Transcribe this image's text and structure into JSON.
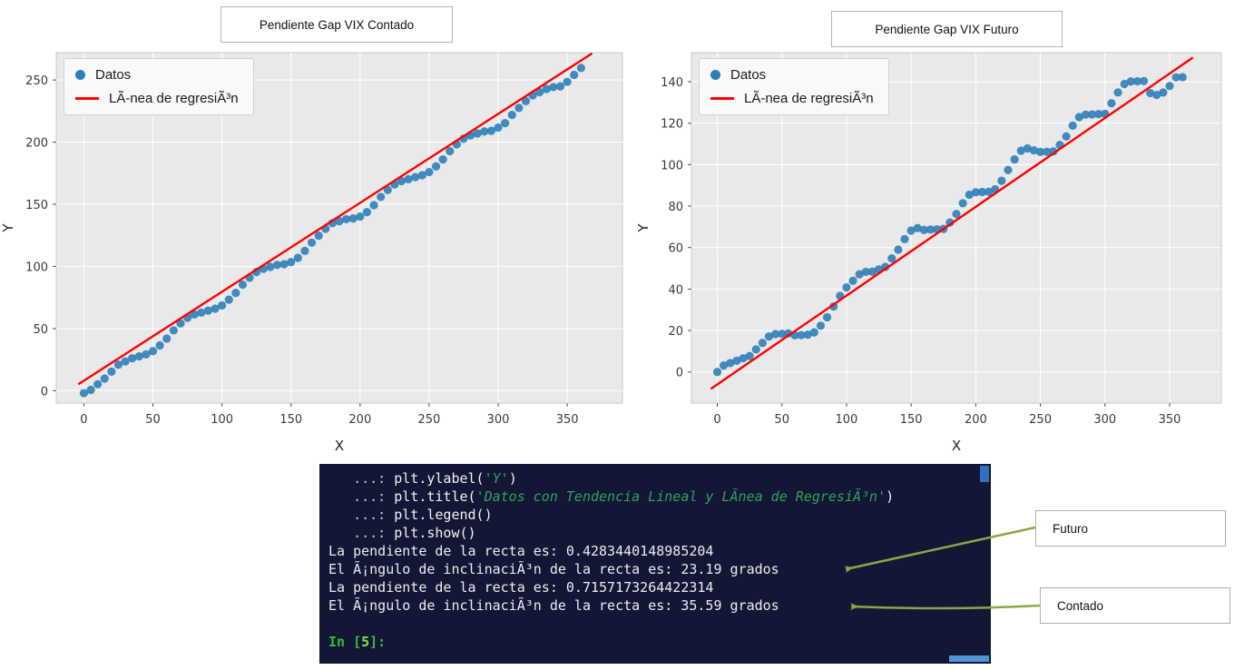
{
  "chart_data": [
    {
      "type": "scatter",
      "id": "contado",
      "title": "Pendiente Gap VIX Contado",
      "legend": [
        "Datos",
        "LÃ-nea de regresiÃ³n"
      ],
      "legend_position": "upper left",
      "xlabel": "X",
      "ylabel": "Y",
      "xlim": [
        -20,
        390
      ],
      "ylim": [
        -10,
        272
      ],
      "xticks": [
        0,
        50,
        100,
        150,
        200,
        250,
        300,
        350
      ],
      "yticks": [
        0,
        50,
        100,
        150,
        200,
        250
      ],
      "grid": true,
      "colors": {
        "scatter": "#2d7fb8",
        "line": "#ff0000",
        "plot_bg": "#e9e9e9",
        "grid": "#ffffff",
        "plot_border": "#c9c9c9"
      },
      "regression": {
        "slope": 0.7157173264422314,
        "intercept": 8,
        "angle_deg": 35.59,
        "x_start": -4,
        "x_end": 368
      },
      "points": [
        [
          0,
          -2
        ],
        [
          5,
          0.6
        ],
        [
          10,
          5.2
        ],
        [
          15,
          9.7
        ],
        [
          20,
          15.3
        ],
        [
          25,
          20.9
        ],
        [
          30,
          23.5
        ],
        [
          35,
          26.1
        ],
        [
          40,
          27.6
        ],
        [
          45,
          29.2
        ],
        [
          50,
          31.8
        ],
        [
          55,
          36.4
        ],
        [
          60,
          41.9
        ],
        [
          65,
          48.5
        ],
        [
          70,
          54.1
        ],
        [
          75,
          58.7
        ],
        [
          80,
          61.3
        ],
        [
          85,
          62.8
        ],
        [
          90,
          64.4
        ],
        [
          95,
          66
        ],
        [
          100,
          68.6
        ],
        [
          105,
          73.2
        ],
        [
          110,
          78.7
        ],
        [
          115,
          85.3
        ],
        [
          120,
          90.9
        ],
        [
          125,
          95.5
        ],
        [
          130,
          98
        ],
        [
          135,
          99.6
        ],
        [
          140,
          101.2
        ],
        [
          145,
          101.8
        ],
        [
          150,
          103.4
        ],
        [
          155,
          106.9
        ],
        [
          160,
          112.5
        ],
        [
          165,
          119.1
        ],
        [
          170,
          124.7
        ],
        [
          175,
          130.3
        ],
        [
          180,
          134.8
        ],
        [
          185,
          136.4
        ],
        [
          190,
          138
        ],
        [
          195,
          138.6
        ],
        [
          200,
          140.1
        ],
        [
          205,
          143.7
        ],
        [
          210,
          149.3
        ],
        [
          215,
          155.9
        ],
        [
          220,
          161.5
        ],
        [
          225,
          166
        ],
        [
          230,
          168.6
        ],
        [
          235,
          170.2
        ],
        [
          240,
          171.8
        ],
        [
          245,
          173.4
        ],
        [
          250,
          175.9
        ],
        [
          255,
          180.5
        ],
        [
          260,
          186.1
        ],
        [
          265,
          192.7
        ],
        [
          270,
          198.2
        ],
        [
          275,
          202.8
        ],
        [
          280,
          205.4
        ],
        [
          285,
          207
        ],
        [
          290,
          208.6
        ],
        [
          295,
          209.1
        ],
        [
          300,
          211.7
        ],
        [
          305,
          215.3
        ],
        [
          310,
          221.9
        ],
        [
          315,
          227.5
        ],
        [
          320,
          233
        ],
        [
          325,
          237.6
        ],
        [
          330,
          240.2
        ],
        [
          335,
          242.8
        ],
        [
          340,
          244.3
        ],
        [
          345,
          244.9
        ],
        [
          350,
          248.5
        ],
        [
          355,
          254.1
        ],
        [
          360,
          259.7
        ]
      ]
    },
    {
      "type": "scatter",
      "id": "futuro",
      "title": "Pendiente Gap VIX Futuro",
      "legend": [
        "Datos",
        "LÃ-nea de regresiÃ³n"
      ],
      "legend_position": "upper left",
      "xlabel": "X",
      "ylabel": "Y",
      "xlim": [
        -20,
        390
      ],
      "ylim": [
        -15,
        154
      ],
      "xticks": [
        0,
        50,
        100,
        150,
        200,
        250,
        300,
        350
      ],
      "yticks": [
        0,
        20,
        40,
        60,
        80,
        100,
        120,
        140
      ],
      "grid": true,
      "colors": {
        "scatter": "#2d7fb8",
        "line": "#ff0000",
        "plot_bg": "#e9e9e9",
        "grid": "#ffffff",
        "plot_border": "#c9c9c9"
      },
      "regression": {
        "slope": 0.4283440148985204,
        "intercept": -6,
        "angle_deg": 23.19,
        "x_start": -5,
        "x_end": 368
      },
      "points": [
        [
          0,
          0
        ],
        [
          5,
          3.1
        ],
        [
          10,
          4.3
        ],
        [
          15,
          5.4
        ],
        [
          20,
          6.6
        ],
        [
          25,
          7.7
        ],
        [
          30,
          10.9
        ],
        [
          35,
          14
        ],
        [
          40,
          17.1
        ],
        [
          45,
          18.3
        ],
        [
          50,
          18.4
        ],
        [
          55,
          18.6
        ],
        [
          60,
          17.7
        ],
        [
          65,
          17.8
        ],
        [
          70,
          18
        ],
        [
          75,
          19.1
        ],
        [
          80,
          22.3
        ],
        [
          85,
          26.4
        ],
        [
          90,
          31.6
        ],
        [
          95,
          36.7
        ],
        [
          100,
          40.8
        ],
        [
          105,
          44
        ],
        [
          110,
          47.1
        ],
        [
          115,
          48.3
        ],
        [
          120,
          48.4
        ],
        [
          125,
          49.5
        ],
        [
          130,
          50.7
        ],
        [
          135,
          54.8
        ],
        [
          140,
          59
        ],
        [
          145,
          64.1
        ],
        [
          150,
          68.2
        ],
        [
          155,
          69.4
        ],
        [
          160,
          68.5
        ],
        [
          165,
          68.7
        ],
        [
          170,
          68.8
        ],
        [
          175,
          69
        ],
        [
          180,
          72.1
        ],
        [
          185,
          76.2
        ],
        [
          190,
          81.4
        ],
        [
          195,
          85.5
        ],
        [
          200,
          86.7
        ],
        [
          205,
          86.8
        ],
        [
          210,
          86.9
        ],
        [
          215,
          88.1
        ],
        [
          220,
          92.2
        ],
        [
          225,
          97.4
        ],
        [
          230,
          102.5
        ],
        [
          235,
          106.7
        ],
        [
          240,
          107.8
        ],
        [
          245,
          106.9
        ],
        [
          250,
          106.1
        ],
        [
          255,
          106.2
        ],
        [
          260,
          106.4
        ],
        [
          265,
          109.5
        ],
        [
          270,
          113.6
        ],
        [
          275,
          118.8
        ],
        [
          280,
          122.9
        ],
        [
          285,
          124.1
        ],
        [
          290,
          124.2
        ],
        [
          295,
          124.4
        ],
        [
          300,
          124.5
        ],
        [
          305,
          129.6
        ],
        [
          310,
          134.8
        ],
        [
          315,
          138.9
        ],
        [
          320,
          140.1
        ],
        [
          325,
          140.2
        ],
        [
          330,
          140.3
        ],
        [
          335,
          134.5
        ],
        [
          340,
          133.6
        ],
        [
          345,
          134.8
        ],
        [
          350,
          137.9
        ],
        [
          355,
          142.1
        ],
        [
          360,
          142.2
        ]
      ]
    }
  ],
  "terminal": {
    "colors": {
      "background": "#131735",
      "prompt": "#c9c9c9",
      "code": "#f2f2f2",
      "string": "#2fa35c",
      "output": "#ededed",
      "inprompt": "#2fbf3f",
      "inprompt_num": "#7ee24a",
      "scroll_thumb": "#2f6fbd",
      "scroll_thumb_h": "#4f96d8"
    },
    "lines": [
      {
        "segments": [
          {
            "t": "   ...: ",
            "c": "prompt"
          },
          {
            "t": "plt.ylabel(",
            "c": "code"
          },
          {
            "t": "'Y'",
            "c": "string"
          },
          {
            "t": ")",
            "c": "code"
          }
        ]
      },
      {
        "segments": [
          {
            "t": "   ...: ",
            "c": "prompt"
          },
          {
            "t": "plt.title(",
            "c": "code"
          },
          {
            "t": "'Datos con Tendencia Lineal y LÃnea de RegresiÃ³n'",
            "c": "string"
          },
          {
            "t": ")",
            "c": "code"
          }
        ]
      },
      {
        "segments": [
          {
            "t": "   ...: ",
            "c": "prompt"
          },
          {
            "t": "plt.legend()",
            "c": "code"
          }
        ]
      },
      {
        "segments": [
          {
            "t": "   ...: ",
            "c": "prompt"
          },
          {
            "t": "plt.show()",
            "c": "code"
          }
        ]
      },
      {
        "segments": [
          {
            "t": "La pendiente de la recta es: 0.4283440148985204",
            "c": "output"
          }
        ]
      },
      {
        "segments": [
          {
            "t": "El Ã¡ngulo de inclinaciÃ³n de la recta es: 23.19 grados",
            "c": "output"
          }
        ]
      },
      {
        "segments": [
          {
            "t": "La pendiente de la recta es: 0.7157173264422314",
            "c": "output"
          }
        ]
      },
      {
        "segments": [
          {
            "t": "El Ã¡ngulo de inclinaciÃ³n de la recta es: 35.59 grados",
            "c": "output"
          }
        ]
      },
      {
        "segments": []
      },
      {
        "segments": [
          {
            "t": "In [",
            "c": "inprompt"
          },
          {
            "t": "5",
            "c": "inprompt-num"
          },
          {
            "t": "]:",
            "c": "inprompt"
          }
        ]
      }
    ]
  },
  "callouts": [
    {
      "label": "Futuro"
    },
    {
      "label": "Contado"
    }
  ],
  "annotations": {
    "arrow_color": "#8ca646"
  }
}
